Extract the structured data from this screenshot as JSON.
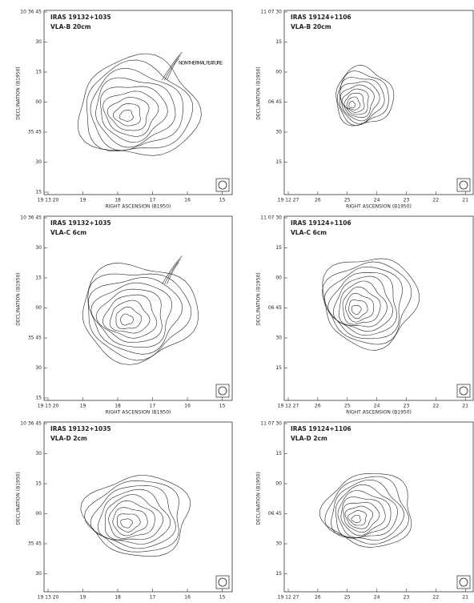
{
  "panels": [
    {
      "title": "IRAS 19132+1035",
      "config": "VLA-B  20cm",
      "annotation": "NON-THERMAL FEATURE",
      "y_ticks": [
        "10 36 45",
        "30",
        "15",
        "00",
        "35 45",
        "30",
        "15"
      ],
      "x_ticks": [
        "19 13 20",
        "19",
        "18",
        "17",
        "16",
        "15"
      ],
      "y_label": "DECLINATION (B1950)",
      "x_label": "RIGHT ASCENSION (B1950)"
    },
    {
      "title": "IRAS 19124+1106",
      "config": "VLA-B  20cm",
      "y_ticks": [
        "11 07 30",
        "15",
        "00",
        "06 45",
        "30",
        "15"
      ],
      "x_ticks": [
        "19 12 27",
        "26",
        "25",
        "24",
        "23",
        "22",
        "21"
      ],
      "y_label": "DECLINATION (B1950)",
      "x_label": "RIGHT ASCENSION (B1950)"
    },
    {
      "title": "IRAS 19132+1035",
      "config": "VLA-C  6cm",
      "y_ticks": [
        "10 36 45",
        "30",
        "15",
        "00",
        "35 45",
        "30",
        "15"
      ],
      "x_ticks": [
        "19 13 20",
        "19",
        "18",
        "17",
        "16",
        "15"
      ],
      "y_label": "DECLINATION (B1950)",
      "x_label": "RIGHT ASCENSION (B1950)"
    },
    {
      "title": "IRAS 19124+1106",
      "config": "VLA-C  6cm",
      "y_ticks": [
        "11 07 30",
        "15",
        "00",
        "06 45",
        "30",
        "15"
      ],
      "x_ticks": [
        "19 12 27",
        "26",
        "25",
        "24",
        "23",
        "22",
        "21"
      ],
      "y_label": "DECLINATION (B1950)",
      "x_label": "RIGHT ASCENSION (B1950)"
    },
    {
      "title": "IRAS 19132+1035",
      "config": "VLA-D  2cm",
      "y_ticks": [
        "10 36 45",
        "30",
        "15",
        "00",
        "35 45",
        "30"
      ],
      "x_ticks": [
        "19 13 20",
        "19",
        "18",
        "17",
        "16",
        "15"
      ],
      "y_label": "DECLINATION (B1950)"
    },
    {
      "title": "IRAS 19124+1106",
      "config": "VLA-D  2cm",
      "y_ticks": [
        "11 07 30",
        "15",
        "00",
        "06 45",
        "30",
        "15"
      ],
      "x_ticks": [
        "19 12 27",
        "26",
        "25",
        "24",
        "23",
        "22",
        "21"
      ],
      "y_label": "DECLINATION (B1950)"
    }
  ]
}
